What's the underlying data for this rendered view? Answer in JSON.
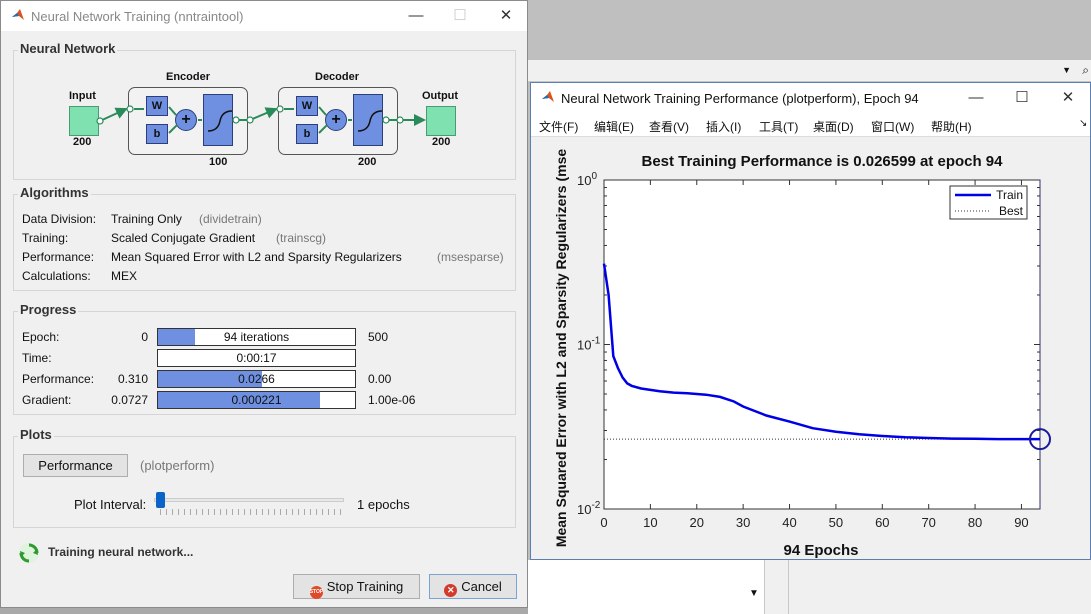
{
  "nntraintool": {
    "title": "Neural Network Training (nntraintool)",
    "network": {
      "section_title": "Neural Network",
      "input_label": "Input",
      "input_size": "200",
      "encoder_label": "Encoder",
      "encoder_size": "100",
      "decoder_label": "Decoder",
      "decoder_size": "200",
      "output_label": "Output",
      "output_size": "200",
      "w_label": "W",
      "b_label": "b",
      "sum_label": "+"
    },
    "algorithms": {
      "section_title": "Algorithms",
      "rows": [
        {
          "label": "Data Division:",
          "value": "Training Only",
          "note": "(dividetrain)"
        },
        {
          "label": "Training:",
          "value": "Scaled Conjugate Gradient",
          "note": "(trainscg)"
        },
        {
          "label": "Performance:",
          "value": "Mean Squared Error with L2 and Sparsity Regularizers",
          "note": "(msesparse)"
        },
        {
          "label": "Calculations:",
          "value": "MEX",
          "note": ""
        }
      ]
    },
    "progress": {
      "section_title": "Progress",
      "rows": [
        {
          "label": "Epoch:",
          "start": "0",
          "bar_text": "94 iterations",
          "end": "500",
          "fill": 0.188
        },
        {
          "label": "Time:",
          "start": "",
          "bar_text": "0:00:17",
          "end": "",
          "fill": 0
        },
        {
          "label": "Performance:",
          "start": "0.310",
          "bar_text": "0.0266",
          "end": "0.00",
          "fill": 0.53
        },
        {
          "label": "Gradient:",
          "start": "0.0727",
          "bar_text": "0.000221",
          "end": "1.00e-06",
          "fill": 0.82
        }
      ]
    },
    "plots": {
      "section_title": "Plots",
      "performance_button": "Performance",
      "performance_note": "(plotperform)",
      "plot_interval_label": "Plot Interval:",
      "plot_interval_value": "1 epochs"
    },
    "status": "Training neural network...",
    "stop_button": "Stop Training",
    "cancel_button": "Cancel"
  },
  "plotperform": {
    "title": "Neural Network Training Performance (plotperform), Epoch 94",
    "menu": [
      "文件(F)",
      "编辑(E)",
      "查看(V)",
      "插入(I)",
      "工具(T)",
      "桌面(D)",
      "窗口(W)",
      "帮助(H)"
    ]
  },
  "colors": {
    "train_line": "#0000e6",
    "bar_fill": "#6f90e0",
    "node_green": "#7fe0b0"
  },
  "chart_data": {
    "type": "line",
    "title": "Best Training Performance is 0.026599 at epoch 94",
    "xlabel": "94 Epochs",
    "ylabel": "Mean Squared Error with L2 and Sparsity Regularizers  (mse",
    "yscale": "log",
    "xlim": [
      0,
      94
    ],
    "ylim": [
      0.01,
      1
    ],
    "xticks": [
      0,
      10,
      20,
      30,
      40,
      50,
      60,
      70,
      80,
      90
    ],
    "yticks": [
      {
        "value": 1,
        "base": "10",
        "exp": "0"
      },
      {
        "value": 0.1,
        "base": "10",
        "exp": "-1"
      },
      {
        "value": 0.01,
        "base": "10",
        "exp": "-2"
      }
    ],
    "legend_position": "top-right",
    "series": [
      {
        "name": "Train",
        "style": "solid",
        "x": [
          0,
          1,
          2,
          3,
          4,
          5,
          6,
          8,
          10,
          12,
          15,
          18,
          20,
          22,
          25,
          28,
          30,
          35,
          40,
          45,
          50,
          55,
          60,
          65,
          70,
          75,
          80,
          85,
          90,
          94
        ],
        "y": [
          0.31,
          0.2,
          0.085,
          0.072,
          0.063,
          0.058,
          0.056,
          0.054,
          0.053,
          0.052,
          0.051,
          0.0505,
          0.05,
          0.0495,
          0.048,
          0.045,
          0.042,
          0.037,
          0.034,
          0.031,
          0.0295,
          0.0285,
          0.0278,
          0.0273,
          0.027,
          0.0268,
          0.0267,
          0.0266,
          0.0266,
          0.026599
        ]
      },
      {
        "name": "Best",
        "style": "dotted",
        "value": 0.026599
      }
    ],
    "best_point": {
      "epoch": 94,
      "value": 0.026599
    }
  }
}
